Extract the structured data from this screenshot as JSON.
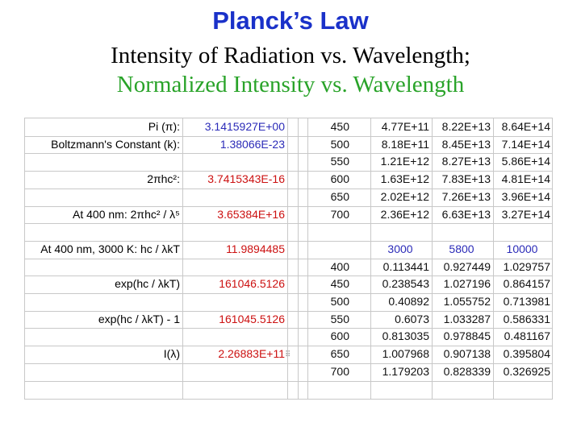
{
  "slide": {
    "title": "Planck’s Law",
    "subtitle_1": "Intensity of Radiation vs. Wavelength;",
    "subtitle_2": "Normalized Intensity vs. Wavelength"
  },
  "calculations": [
    {
      "label": "Pi (π):",
      "value": "3.1415927E+00",
      "color": "blue"
    },
    {
      "label": "Boltzmann's Constant (k):",
      "value": "1.38066E-23",
      "color": "blue"
    },
    {
      "label": "2πhc²:",
      "value": "3.7415343E-16",
      "color": "red"
    },
    {
      "label": "At 400 nm:  2πhc² / λ⁵",
      "value": "3.65384E+16",
      "color": "red"
    },
    {
      "label": "At 400 nm, 3000 K: hc / λkT",
      "value": "11.9894485",
      "color": "red"
    },
    {
      "label": "exp(hc / λkT)",
      "value": "161046.5126",
      "color": "red"
    },
    {
      "label": "exp(hc / λkT) - 1",
      "value": "161045.5126",
      "color": "red"
    },
    {
      "label": "I(λ)",
      "value": "2.26883E+11",
      "color": "red"
    }
  ],
  "intensity_table": {
    "rows": [
      {
        "wavelength": "450",
        "t3000": "4.77E+11",
        "t5800": "8.22E+13",
        "t10000": "8.64E+14"
      },
      {
        "wavelength": "500",
        "t3000": "8.18E+11",
        "t5800": "8.45E+13",
        "t10000": "7.14E+14"
      },
      {
        "wavelength": "550",
        "t3000": "1.21E+12",
        "t5800": "8.27E+13",
        "t10000": "5.86E+14"
      },
      {
        "wavelength": "600",
        "t3000": "1.63E+12",
        "t5800": "7.83E+13",
        "t10000": "4.81E+14"
      },
      {
        "wavelength": "650",
        "t3000": "2.02E+12",
        "t5800": "7.26E+13",
        "t10000": "3.96E+14"
      },
      {
        "wavelength": "700",
        "t3000": "2.36E+12",
        "t5800": "6.63E+13",
        "t10000": "3.27E+14"
      }
    ]
  },
  "normalized_table": {
    "headers": [
      "3000",
      "5800",
      "10000"
    ],
    "rows": [
      {
        "wavelength": "400",
        "t3000": "0.113441",
        "t5800": "0.927449",
        "t10000": "1.029757"
      },
      {
        "wavelength": "450",
        "t3000": "0.238543",
        "t5800": "1.027196",
        "t10000": "0.864157"
      },
      {
        "wavelength": "500",
        "t3000": "0.40892",
        "t5800": "1.055752",
        "t10000": "0.713981"
      },
      {
        "wavelength": "550",
        "t3000": "0.6073",
        "t5800": "1.033287",
        "t10000": "0.586331"
      },
      {
        "wavelength": "600",
        "t3000": "0.813035",
        "t5800": "0.978845",
        "t10000": "0.481167"
      },
      {
        "wavelength": "650",
        "t3000": "1.007968",
        "t5800": "0.907138",
        "t10000": "0.395804"
      },
      {
        "wavelength": "700",
        "t3000": "1.179203",
        "t5800": "0.828339",
        "t10000": "0.326925"
      }
    ]
  },
  "colors": {
    "title": "#1a31c9",
    "subtitle_2": "#29a329",
    "blue_value": "#2b2bb8",
    "red_value": "#cc1111",
    "header_blue": "#2b2bb8"
  },
  "icons": {
    "grip": "resize-grip-icon"
  }
}
